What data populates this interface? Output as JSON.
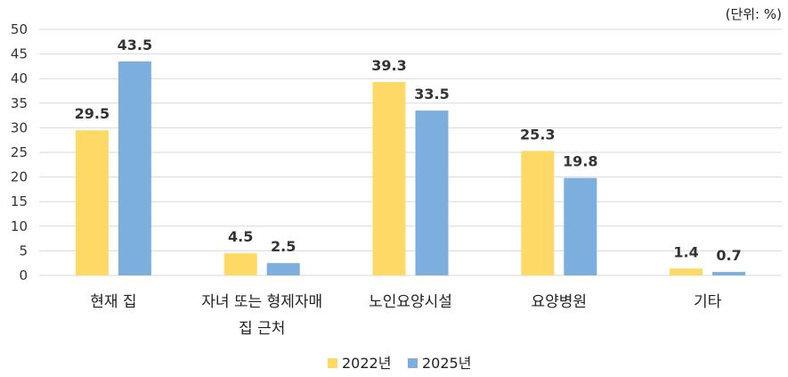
{
  "unit_label": "(단위: %)",
  "chart_data": {
    "type": "bar",
    "categories": [
      "현재 집",
      "자녀 또는 형제자매 집 근처",
      "노인요양시설",
      "요양병원",
      "기타"
    ],
    "category_lines": [
      [
        "현재 집"
      ],
      [
        "자녀 또는 형제자매",
        "집 근처"
      ],
      [
        "노인요양시설"
      ],
      [
        "요양병원"
      ],
      [
        "기타"
      ]
    ],
    "series": [
      {
        "name": "2022년",
        "color": "#ffd966",
        "values": [
          29.5,
          4.5,
          39.3,
          25.3,
          1.4
        ],
        "labels": [
          "29.5",
          "4.5",
          "39.3",
          "25.3",
          "1.4"
        ]
      },
      {
        "name": "2025년",
        "color": "#7cafdd",
        "values": [
          43.5,
          2.5,
          33.5,
          19.8,
          0.7
        ],
        "labels": [
          "43.5",
          "2.5",
          "33.5",
          "19.8",
          "0.7"
        ]
      }
    ],
    "ylim": [
      0,
      50
    ],
    "yticks": [
      0,
      5,
      10,
      15,
      20,
      25,
      30,
      35,
      40,
      45,
      50
    ],
    "grid": true,
    "legend_position": "bottom-center"
  }
}
